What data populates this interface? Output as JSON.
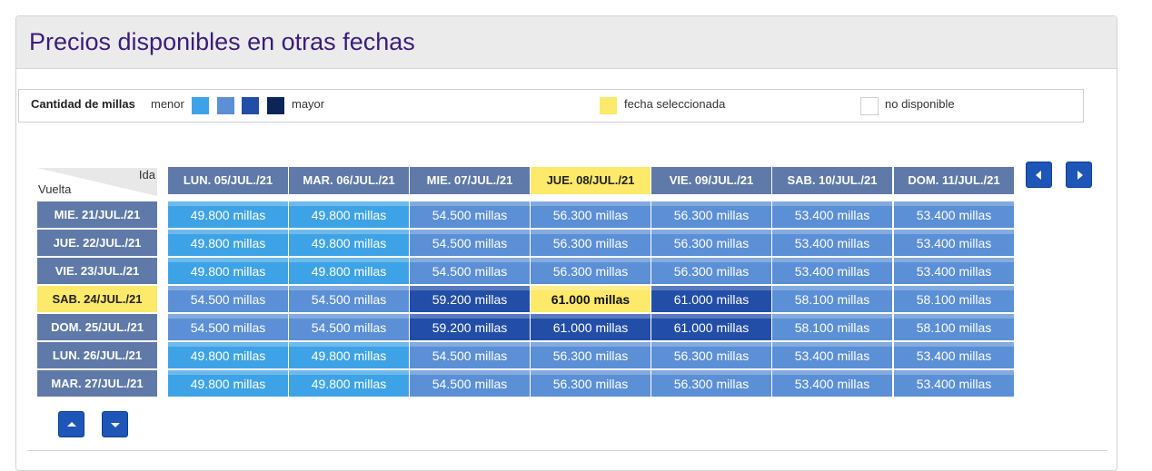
{
  "title": "Precios disponibles en otras fechas",
  "legend": {
    "label": "Cantidad de millas",
    "min_label": "menor",
    "max_label": "mayor",
    "scale_colors": [
      "#3ea3e6",
      "#5b8fd6",
      "#234ea8",
      "#0c2559"
    ],
    "selected_label": "fecha seleccionada",
    "selected_color": "#fde96a",
    "unavailable_label": "no disponible"
  },
  "corner": {
    "ida": "Ida",
    "vuelta": "Vuelta"
  },
  "columns": [
    {
      "label": "LUN. 05/JUL./21",
      "selected": false
    },
    {
      "label": "MAR. 06/JUL./21",
      "selected": false
    },
    {
      "label": "MIE. 07/JUL./21",
      "selected": false
    },
    {
      "label": "JUE. 08/JUL./21",
      "selected": true
    },
    {
      "label": "VIE. 09/JUL./21",
      "selected": false
    },
    {
      "label": "SAB. 10/JUL./21",
      "selected": false
    },
    {
      "label": "DOM. 11/JUL./21",
      "selected": false
    }
  ],
  "rows": [
    {
      "label": "MIE. 21/JUL./21",
      "selected": false,
      "cells": [
        {
          "text": "49.800 millas",
          "level": 1
        },
        {
          "text": "49.800 millas",
          "level": 1
        },
        {
          "text": "54.500 millas",
          "level": 2
        },
        {
          "text": "56.300 millas",
          "level": 2
        },
        {
          "text": "56.300 millas",
          "level": 2
        },
        {
          "text": "53.400 millas",
          "level": 2
        },
        {
          "text": "53.400 millas",
          "level": 2
        }
      ]
    },
    {
      "label": "JUE. 22/JUL./21",
      "selected": false,
      "cells": [
        {
          "text": "49.800 millas",
          "level": 1
        },
        {
          "text": "49.800 millas",
          "level": 1
        },
        {
          "text": "54.500 millas",
          "level": 2
        },
        {
          "text": "56.300 millas",
          "level": 2
        },
        {
          "text": "56.300 millas",
          "level": 2
        },
        {
          "text": "53.400 millas",
          "level": 2
        },
        {
          "text": "53.400 millas",
          "level": 2
        }
      ]
    },
    {
      "label": "VIE. 23/JUL./21",
      "selected": false,
      "cells": [
        {
          "text": "49.800 millas",
          "level": 1
        },
        {
          "text": "49.800 millas",
          "level": 1
        },
        {
          "text": "54.500 millas",
          "level": 2
        },
        {
          "text": "56.300 millas",
          "level": 2
        },
        {
          "text": "56.300 millas",
          "level": 2
        },
        {
          "text": "53.400 millas",
          "level": 2
        },
        {
          "text": "53.400 millas",
          "level": 2
        }
      ]
    },
    {
      "label": "SAB. 24/JUL./21",
      "selected": true,
      "cells": [
        {
          "text": "54.500 millas",
          "level": 2
        },
        {
          "text": "54.500 millas",
          "level": 2
        },
        {
          "text": "59.200 millas",
          "level": 3
        },
        {
          "text": "61.000 millas",
          "level": 0,
          "selected": true
        },
        {
          "text": "61.000 millas",
          "level": 3
        },
        {
          "text": "58.100 millas",
          "level": 2
        },
        {
          "text": "58.100 millas",
          "level": 2
        }
      ]
    },
    {
      "label": "DOM. 25/JUL./21",
      "selected": false,
      "cells": [
        {
          "text": "54.500 millas",
          "level": 2
        },
        {
          "text": "54.500 millas",
          "level": 2
        },
        {
          "text": "59.200 millas",
          "level": 3
        },
        {
          "text": "61.000 millas",
          "level": 3
        },
        {
          "text": "61.000 millas",
          "level": 3
        },
        {
          "text": "58.100 millas",
          "level": 2
        },
        {
          "text": "58.100 millas",
          "level": 2
        }
      ]
    },
    {
      "label": "LUN. 26/JUL./21",
      "selected": false,
      "cells": [
        {
          "text": "49.800 millas",
          "level": 1
        },
        {
          "text": "49.800 millas",
          "level": 1
        },
        {
          "text": "54.500 millas",
          "level": 2
        },
        {
          "text": "56.300 millas",
          "level": 2
        },
        {
          "text": "56.300 millas",
          "level": 2
        },
        {
          "text": "53.400 millas",
          "level": 2
        },
        {
          "text": "53.400 millas",
          "level": 2
        }
      ]
    },
    {
      "label": "MAR. 27/JUL./21",
      "selected": false,
      "cells": [
        {
          "text": "49.800 millas",
          "level": 1
        },
        {
          "text": "49.800 millas",
          "level": 1
        },
        {
          "text": "54.500 millas",
          "level": 2
        },
        {
          "text": "56.300 millas",
          "level": 2
        },
        {
          "text": "56.300 millas",
          "level": 2
        },
        {
          "text": "53.400 millas",
          "level": 2
        },
        {
          "text": "53.400 millas",
          "level": 2
        }
      ]
    }
  ],
  "nav": {
    "prev_icon": "arrow-left-icon",
    "next_icon": "arrow-right-icon",
    "up_icon": "arrow-up-icon",
    "down_icon": "arrow-down-icon"
  }
}
